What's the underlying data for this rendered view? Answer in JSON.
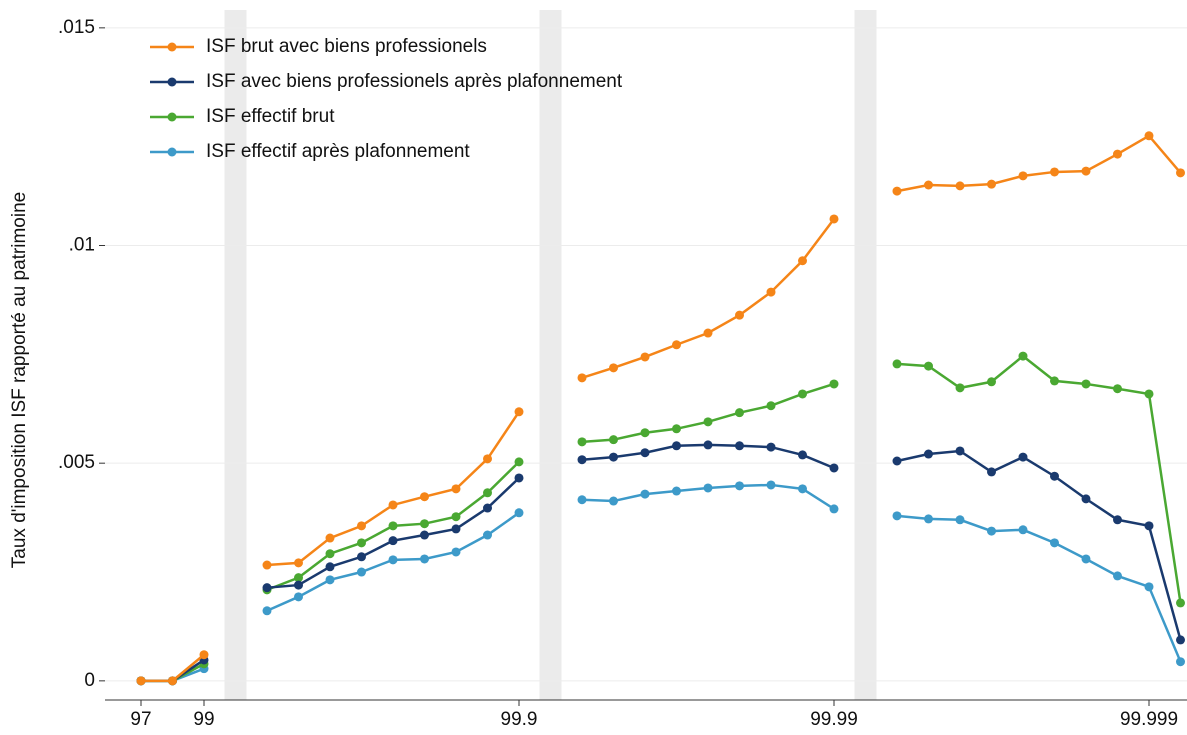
{
  "chart_data": {
    "type": "line",
    "y_label": "Taux d'imposition ISF rapporté au patrimoine",
    "categories": [
      "97",
      null,
      "99",
      null,
      null,
      null,
      null,
      null,
      null,
      null,
      null,
      null,
      "99.9",
      null,
      null,
      null,
      null,
      null,
      null,
      null,
      null,
      null,
      "99.99",
      null,
      null,
      null,
      null,
      null,
      null,
      null,
      null,
      null,
      "99.999",
      null
    ],
    "series": [
      {
        "name": "ISF brut avec biens professionels",
        "color": "#f58518",
        "values": [
          0,
          0,
          0.0006,
          null,
          0.00266,
          0.00271,
          0.00328,
          0.00356,
          0.00404,
          0.00423,
          0.00441,
          0.0051,
          0.00618,
          null,
          0.00696,
          0.00719,
          0.00744,
          0.00772,
          0.00799,
          0.0084,
          0.00893,
          0.00965,
          0.01061,
          null,
          0.01125,
          0.01139,
          0.01137,
          0.01141,
          0.0116,
          0.01169,
          0.01171,
          0.0121,
          0.01252,
          0.01167
        ]
      },
      {
        "name": "ISF avec biens professionels après plafonnement",
        "color": "#1a3a6e",
        "values": [
          0,
          0,
          0.00048,
          null,
          0.00214,
          0.0022,
          0.00262,
          0.00285,
          0.00322,
          0.00335,
          0.00349,
          0.00397,
          0.00466,
          null,
          0.00508,
          0.00514,
          0.00524,
          0.0054,
          0.00542,
          0.0054,
          0.00537,
          0.00519,
          0.00489,
          null,
          0.00505,
          0.00521,
          0.00528,
          0.0048,
          0.00514,
          0.0047,
          0.00418,
          0.0037,
          0.00356,
          0.00094
        ]
      },
      {
        "name": "ISF effectif brut",
        "color": "#4aa832",
        "values": [
          0,
          0,
          0.00039,
          null,
          0.00209,
          0.00237,
          0.00292,
          0.00317,
          0.00356,
          0.00361,
          0.00377,
          0.00432,
          0.00503,
          null,
          0.00549,
          0.00554,
          0.0057,
          0.00579,
          0.00595,
          0.00616,
          0.00632,
          0.00659,
          0.00682,
          null,
          0.00728,
          0.00723,
          0.00673,
          0.00687,
          0.00746,
          0.00689,
          0.00682,
          0.00671,
          0.00659,
          0.00179
        ]
      },
      {
        "name": "ISF effectif après plafonnement",
        "color": "#3d9ac9",
        "values": [
          0,
          0,
          0.00028,
          null,
          0.00161,
          0.00193,
          0.00232,
          0.0025,
          0.00278,
          0.0028,
          0.00296,
          0.00335,
          0.00386,
          null,
          0.00416,
          0.00413,
          0.00429,
          0.00436,
          0.00443,
          0.00448,
          0.0045,
          0.00441,
          0.00395,
          null,
          0.00379,
          0.00372,
          0.0037,
          0.00344,
          0.00347,
          0.00317,
          0.0028,
          0.00241,
          0.00216,
          0.00044
        ]
      }
    ],
    "ylim": [
      -0.00044,
      0.01541
    ],
    "yticks": [
      0,
      {
        "value": 0.005,
        "label": ".005"
      },
      {
        "value": 0.01,
        "label": ".01"
      },
      {
        "value": 0.015,
        "label": ".015"
      }
    ],
    "grid": true,
    "legend": "top-left"
  }
}
